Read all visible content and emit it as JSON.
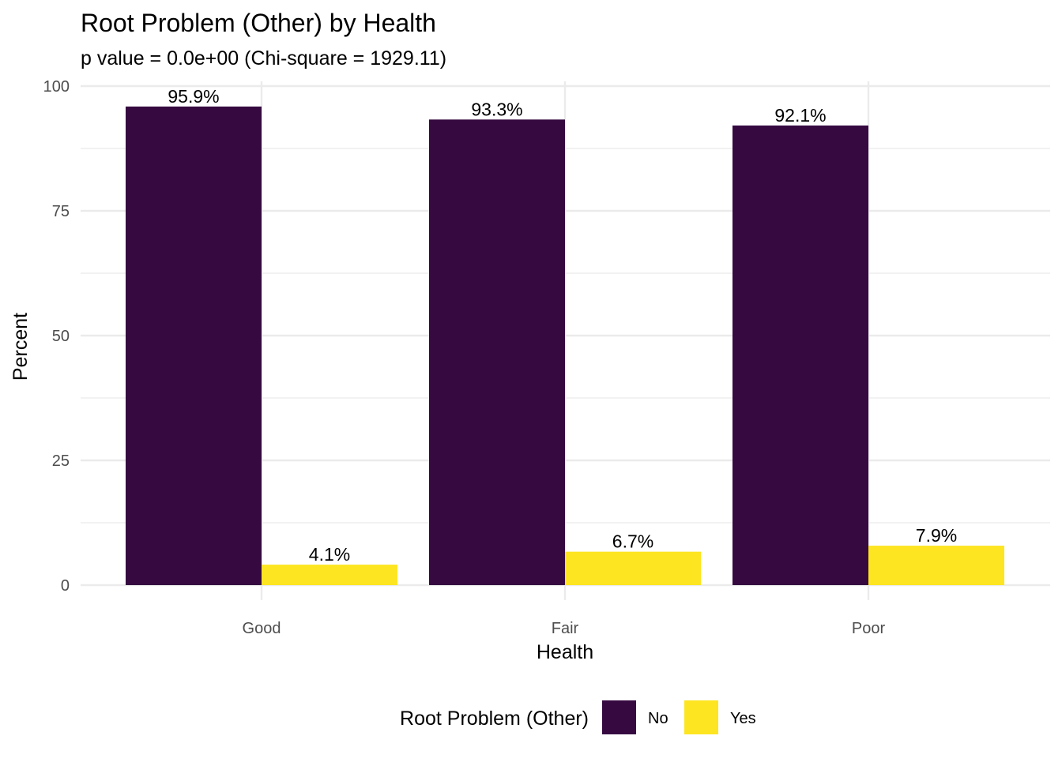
{
  "chart_data": {
    "type": "bar",
    "title": "Root Problem (Other) by Health",
    "subtitle": "p value = 0.0e+00 (Chi-square = 1929.11)",
    "xlabel": "Health",
    "ylabel": "Percent",
    "categories": [
      "Good",
      "Fair",
      "Poor"
    ],
    "series": [
      {
        "name": "No",
        "color": "#360A41",
        "values": [
          95.9,
          93.3,
          92.1
        ],
        "labels": [
          "95.9%",
          "93.3%",
          "92.1%"
        ]
      },
      {
        "name": "Yes",
        "color": "#FDE521",
        "values": [
          4.1,
          6.7,
          7.9
        ],
        "labels": [
          "4.1%",
          "6.7%",
          "7.9%"
        ]
      }
    ],
    "ylim": [
      0,
      100
    ],
    "yticks": [
      0,
      25,
      50,
      75,
      100
    ],
    "ytick_labels": [
      "0",
      "25",
      "50",
      "75",
      "100"
    ],
    "grid": true,
    "legend": {
      "title": "Root Problem (Other)",
      "position": "bottom",
      "entries": [
        "No",
        "Yes"
      ]
    }
  }
}
